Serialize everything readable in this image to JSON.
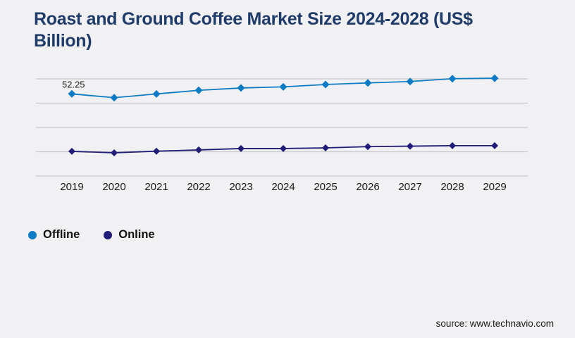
{
  "page": {
    "background_color": "#f1f1f3",
    "title_lines": [
      "Roast and Ground Coffee Market Size 2024-2028 (US$",
      "Billion)"
    ],
    "title_color": "#1f3b69",
    "source_text": "source: www.technavio.com",
    "axis_text_color": "#1a1a1a",
    "gridline_color": "#c9c9cd"
  },
  "chart_data": {
    "type": "line",
    "title": "Roast and Ground Coffee Market Size 2024-2028 (US$ Billion)",
    "xlabel": "",
    "ylabel": "US$ Billion",
    "categories": [
      "2019",
      "2020",
      "2021",
      "2022",
      "2023",
      "2024",
      "2025",
      "2026",
      "2027",
      "2028",
      "2029"
    ],
    "series": [
      {
        "name": "Offline",
        "color": "#0e7cc4",
        "marker": "diamond",
        "values": [
          52.25,
          49.8,
          52.2,
          54.5,
          56.0,
          56.7,
          58.2,
          59.2,
          60.1,
          61.9,
          62.2
        ]
      },
      {
        "name": "Online",
        "color": "#201d78",
        "marker": "diamond",
        "values": [
          15.7,
          14.8,
          15.8,
          16.6,
          17.5,
          17.5,
          17.9,
          18.7,
          19.0,
          19.3,
          19.3
        ]
      }
    ],
    "data_labels": [
      {
        "series": 0,
        "index": 0,
        "text": "52.25"
      }
    ],
    "ylim": [
      0,
      65
    ],
    "grid": true,
    "legend_position": "bottom-left",
    "legend_marker": "circle"
  }
}
